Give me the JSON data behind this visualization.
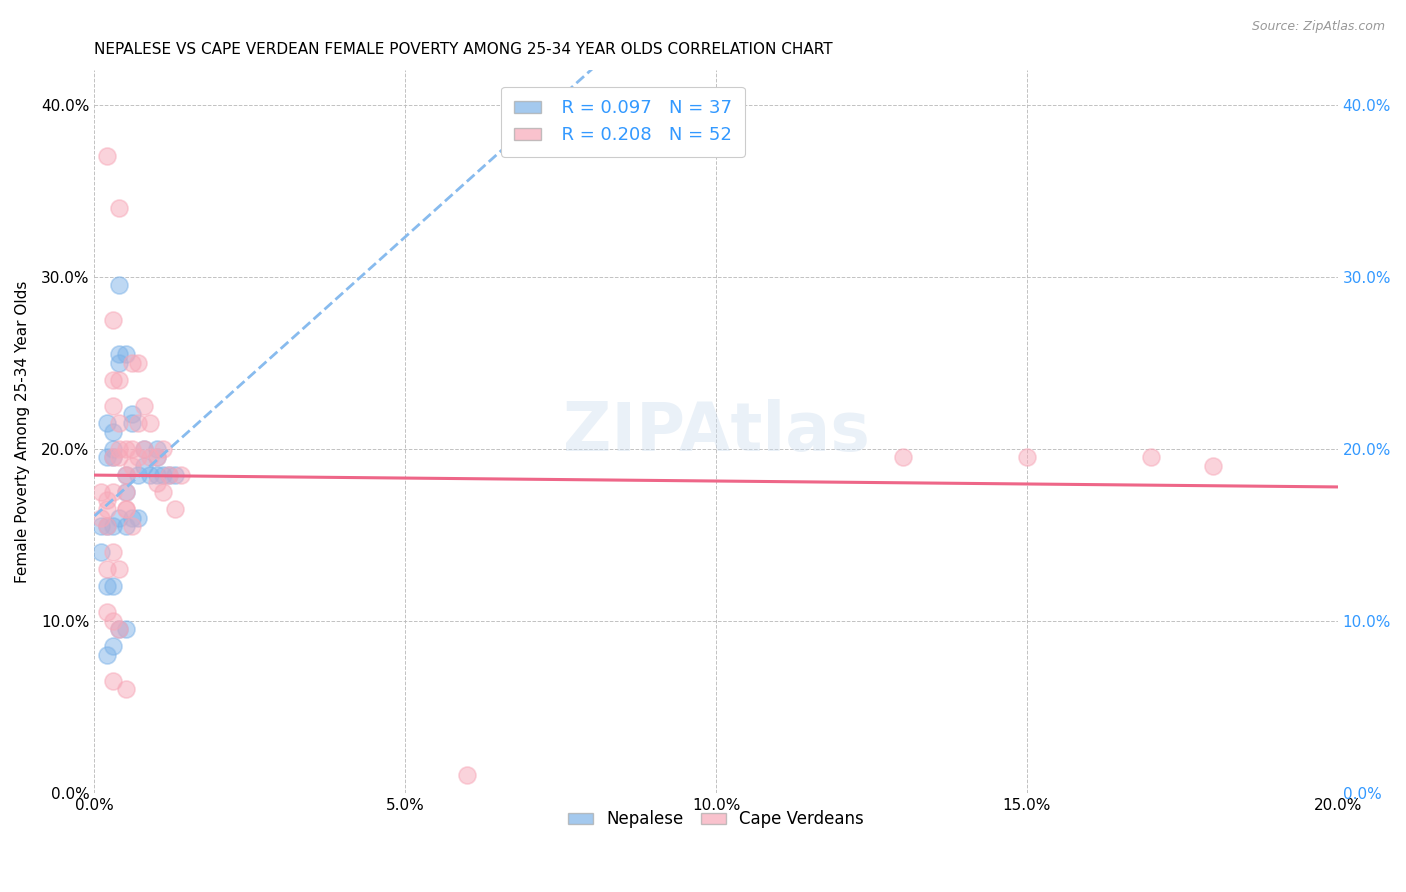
{
  "title": "NEPALESE VS CAPE VERDEAN FEMALE POVERTY AMONG 25-34 YEAR OLDS CORRELATION CHART",
  "source": "Source: ZipAtlas.com",
  "ylabel": "Female Poverty Among 25-34 Year Olds",
  "xlabel_legend1": "Nepalese",
  "xlabel_legend2": "Cape Verdeans",
  "legend_r1": "R = 0.097",
  "legend_n1": "N = 37",
  "legend_r2": "R = 0.208",
  "legend_n2": "N = 52",
  "xlim": [
    0.0,
    0.2
  ],
  "ylim": [
    0.0,
    0.42
  ],
  "xticks": [
    0.0,
    0.05,
    0.1,
    0.15,
    0.2
  ],
  "yticks": [
    0.0,
    0.1,
    0.2,
    0.3,
    0.4
  ],
  "watermark": "ZIPAtlas",
  "color_blue": "#7EB3E8",
  "color_pink": "#F7A8B8",
  "color_blue_line": "#88BBEE",
  "color_pink_line": "#EE6688",
  "nepalese_x": [
    0.001,
    0.002,
    0.002,
    0.003,
    0.003,
    0.003,
    0.004,
    0.004,
    0.005,
    0.005,
    0.005,
    0.006,
    0.006,
    0.007,
    0.008,
    0.008,
    0.009,
    0.01,
    0.01,
    0.01,
    0.011,
    0.012,
    0.013,
    0.001,
    0.002,
    0.003,
    0.004,
    0.005,
    0.006,
    0.007,
    0.002,
    0.003,
    0.004,
    0.005,
    0.003,
    0.002,
    0.004
  ],
  "nepalese_y": [
    0.155,
    0.195,
    0.215,
    0.21,
    0.2,
    0.195,
    0.255,
    0.25,
    0.255,
    0.185,
    0.175,
    0.22,
    0.215,
    0.185,
    0.2,
    0.19,
    0.185,
    0.185,
    0.195,
    0.2,
    0.185,
    0.185,
    0.185,
    0.14,
    0.155,
    0.155,
    0.16,
    0.155,
    0.16,
    0.16,
    0.12,
    0.12,
    0.095,
    0.095,
    0.085,
    0.08,
    0.295
  ],
  "capeverdean_x": [
    0.001,
    0.001,
    0.002,
    0.002,
    0.002,
    0.003,
    0.003,
    0.003,
    0.003,
    0.004,
    0.004,
    0.004,
    0.004,
    0.005,
    0.005,
    0.005,
    0.005,
    0.006,
    0.006,
    0.006,
    0.007,
    0.007,
    0.007,
    0.008,
    0.008,
    0.009,
    0.009,
    0.01,
    0.01,
    0.011,
    0.011,
    0.012,
    0.013,
    0.014,
    0.002,
    0.003,
    0.004,
    0.005,
    0.006,
    0.002,
    0.003,
    0.004,
    0.005,
    0.003,
    0.004,
    0.15,
    0.17,
    0.18,
    0.002,
    0.003,
    0.13,
    0.06
  ],
  "capeverdean_y": [
    0.175,
    0.16,
    0.165,
    0.155,
    0.17,
    0.195,
    0.24,
    0.225,
    0.175,
    0.24,
    0.215,
    0.2,
    0.195,
    0.2,
    0.175,
    0.185,
    0.165,
    0.2,
    0.19,
    0.25,
    0.195,
    0.215,
    0.25,
    0.2,
    0.225,
    0.195,
    0.215,
    0.195,
    0.18,
    0.175,
    0.2,
    0.185,
    0.165,
    0.185,
    0.13,
    0.14,
    0.13,
    0.165,
    0.155,
    0.105,
    0.1,
    0.095,
    0.06,
    0.275,
    0.34,
    0.195,
    0.195,
    0.19,
    0.37,
    0.065,
    0.195,
    0.01
  ]
}
